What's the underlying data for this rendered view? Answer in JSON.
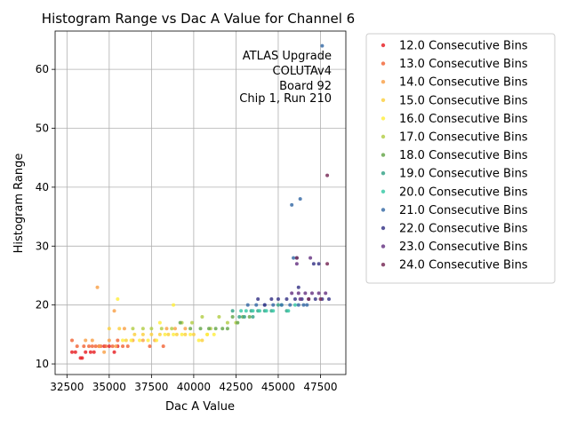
{
  "chart_data": {
    "type": "scatter",
    "title": "Histogram Range vs Dac A Value for Channel 6",
    "xlabel": "Dac A Value",
    "ylabel": "Histogram Range",
    "xlim": [
      31800,
      49000
    ],
    "ylim": [
      8.2,
      66.5
    ],
    "x_ticks": [
      32500,
      35000,
      37500,
      40000,
      42500,
      45000,
      47500
    ],
    "x_tick_labels": [
      "32500",
      "35000",
      "37500",
      "40000",
      "42500",
      "45000",
      "47500"
    ],
    "y_ticks": [
      10,
      20,
      30,
      40,
      50,
      60
    ],
    "y_tick_labels": [
      "10",
      "20",
      "30",
      "40",
      "50",
      "60"
    ],
    "grid": true,
    "legend_position": "outside-right",
    "annotation": [
      "ATLAS Upgrade",
      "COLUTAv4",
      "Board 92",
      "Chip 1, Run 210"
    ],
    "series": [
      {
        "name": "12.0 Consecutive Bins",
        "color": "#e8262a",
        "points": [
          [
            32800,
            12
          ],
          [
            33000,
            12
          ],
          [
            33300,
            11
          ],
          [
            33400,
            11
          ],
          [
            33600,
            12
          ],
          [
            33900,
            12
          ],
          [
            34100,
            12
          ],
          [
            34400,
            13
          ],
          [
            34700,
            13
          ],
          [
            35000,
            13
          ],
          [
            35300,
            12
          ],
          [
            35500,
            13
          ]
        ]
      },
      {
        "name": "13.0 Consecutive Bins",
        "color": "#f26a3d",
        "points": [
          [
            32800,
            14
          ],
          [
            33100,
            13
          ],
          [
            33500,
            13
          ],
          [
            33800,
            13
          ],
          [
            34000,
            13
          ],
          [
            34200,
            13
          ],
          [
            34500,
            13
          ],
          [
            34800,
            13
          ],
          [
            35200,
            13
          ],
          [
            35500,
            14
          ],
          [
            35800,
            13
          ],
          [
            36100,
            13
          ],
          [
            37400,
            13
          ],
          [
            38200,
            13
          ]
        ]
      },
      {
        "name": "14.0 Consecutive Bins",
        "color": "#f9a34d",
        "points": [
          [
            34300,
            23
          ],
          [
            35300,
            19
          ],
          [
            33600,
            14
          ],
          [
            34000,
            14
          ],
          [
            34400,
            13
          ],
          [
            34700,
            12
          ],
          [
            35000,
            14
          ],
          [
            35400,
            13
          ],
          [
            35900,
            16
          ],
          [
            36400,
            14
          ],
          [
            37000,
            14
          ],
          [
            37700,
            14
          ],
          [
            38400,
            16
          ],
          [
            38900,
            16
          ],
          [
            39500,
            16
          ]
        ]
      },
      {
        "name": "15.0 Consecutive Bins",
        "color": "#fcd144",
        "points": [
          [
            35000,
            16
          ],
          [
            35600,
            16
          ],
          [
            36000,
            14
          ],
          [
            36500,
            15
          ],
          [
            37000,
            15
          ],
          [
            37500,
            15
          ],
          [
            38000,
            15
          ],
          [
            38500,
            15
          ],
          [
            39000,
            15
          ],
          [
            39500,
            15
          ],
          [
            40000,
            15
          ],
          [
            40500,
            14
          ],
          [
            40800,
            15
          ]
        ]
      },
      {
        "name": "16.0 Consecutive Bins",
        "color": "#ffee44",
        "points": [
          [
            35500,
            21
          ],
          [
            38000,
            17
          ],
          [
            38800,
            20
          ],
          [
            35800,
            14
          ],
          [
            36300,
            14
          ],
          [
            36800,
            14
          ],
          [
            37300,
            14
          ],
          [
            37800,
            14
          ],
          [
            38300,
            15
          ],
          [
            38800,
            15
          ],
          [
            39300,
            15
          ],
          [
            39800,
            15
          ],
          [
            40300,
            14
          ],
          [
            40800,
            15
          ],
          [
            41200,
            15
          ]
        ]
      },
      {
        "name": "17.0 Consecutive Bins",
        "color": "#b5cf4c",
        "points": [
          [
            36400,
            16
          ],
          [
            37000,
            16
          ],
          [
            37500,
            16
          ],
          [
            38100,
            16
          ],
          [
            38700,
            16
          ],
          [
            39300,
            17
          ],
          [
            39900,
            17
          ],
          [
            40500,
            18
          ],
          [
            41000,
            16
          ],
          [
            41500,
            18
          ],
          [
            42000,
            17
          ],
          [
            42500,
            17
          ]
        ]
      },
      {
        "name": "18.0 Consecutive Bins",
        "color": "#6aa84f",
        "points": [
          [
            39200,
            17
          ],
          [
            39800,
            16
          ],
          [
            40400,
            16
          ],
          [
            40900,
            16
          ],
          [
            41300,
            16
          ],
          [
            41700,
            16
          ],
          [
            42000,
            16
          ],
          [
            42300,
            18
          ],
          [
            42600,
            17
          ],
          [
            42900,
            18
          ],
          [
            43300,
            18
          ]
        ]
      },
      {
        "name": "19.0 Consecutive Bins",
        "color": "#3aa58a",
        "points": [
          [
            42300,
            19
          ],
          [
            42700,
            18
          ],
          [
            43000,
            18
          ],
          [
            43400,
            19
          ],
          [
            43800,
            19
          ],
          [
            44200,
            19
          ],
          [
            44600,
            19
          ],
          [
            45000,
            20
          ],
          [
            45500,
            19
          ],
          [
            43500,
            18
          ]
        ]
      },
      {
        "name": "20.0 Consecutive Bins",
        "color": "#3dcaa8",
        "points": [
          [
            42800,
            19
          ],
          [
            43100,
            19
          ],
          [
            43500,
            19
          ],
          [
            43900,
            19
          ],
          [
            44300,
            19
          ],
          [
            44700,
            19
          ],
          [
            45200,
            20
          ],
          [
            45600,
            19
          ],
          [
            46000,
            20
          ]
        ]
      },
      {
        "name": "21.0 Consecutive Bins",
        "color": "#3c6ea8",
        "points": [
          [
            43200,
            20
          ],
          [
            43700,
            20
          ],
          [
            44200,
            20
          ],
          [
            44700,
            20
          ],
          [
            45200,
            20
          ],
          [
            45700,
            20
          ],
          [
            46200,
            20
          ],
          [
            46700,
            20
          ],
          [
            45800,
            37
          ],
          [
            46300,
            38
          ],
          [
            47600,
            64
          ],
          [
            45900,
            28
          ],
          [
            46100,
            28
          ],
          [
            46500,
            20
          ]
        ]
      },
      {
        "name": "22.0 Consecutive Bins",
        "color": "#3c3a8a",
        "points": [
          [
            43800,
            21
          ],
          [
            44200,
            20
          ],
          [
            44600,
            21
          ],
          [
            45000,
            21
          ],
          [
            45500,
            21
          ],
          [
            46000,
            21
          ],
          [
            46400,
            21
          ],
          [
            46800,
            21
          ],
          [
            47200,
            21
          ],
          [
            47600,
            21
          ],
          [
            48000,
            21
          ],
          [
            46200,
            23
          ],
          [
            47100,
            27
          ],
          [
            47400,
            27
          ]
        ]
      },
      {
        "name": "23.0 Consecutive Bins",
        "color": "#6b3a86",
        "points": [
          [
            45800,
            22
          ],
          [
            46200,
            22
          ],
          [
            46600,
            22
          ],
          [
            47000,
            22
          ],
          [
            47400,
            22
          ],
          [
            47800,
            22
          ],
          [
            46100,
            27
          ],
          [
            46900,
            28
          ],
          [
            46300,
            21
          ]
        ]
      },
      {
        "name": "24.0 Consecutive Bins",
        "color": "#7a2f5a",
        "points": [
          [
            47900,
            42
          ],
          [
            47900,
            27
          ],
          [
            46100,
            28
          ],
          [
            46800,
            21
          ],
          [
            47500,
            21
          ]
        ]
      }
    ]
  }
}
